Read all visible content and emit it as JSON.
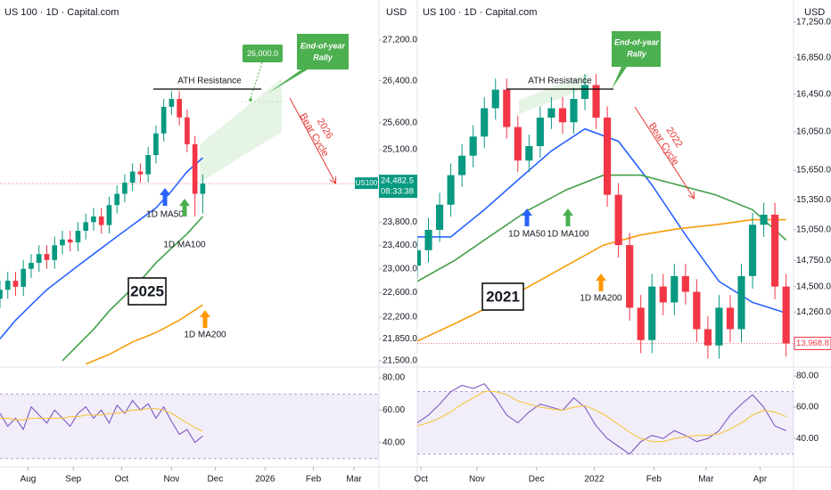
{
  "chart_data": [
    {
      "type": "candlestick",
      "source": "US 100 · 1D · Capital.com",
      "currency": "USD",
      "log": true,
      "up_color": "#089981",
      "down_color": "#f23645",
      "x": [
        0,
        5,
        10,
        15,
        20,
        25,
        30,
        35,
        40,
        45,
        50,
        55,
        60,
        65,
        70,
        75,
        80,
        85,
        90,
        95,
        100,
        105,
        110,
        115,
        120,
        125,
        130
      ],
      "open": [
        22500,
        22650,
        22800,
        22700,
        23000,
        23100,
        23250,
        23150,
        23400,
        23500,
        23450,
        23650,
        23800,
        23900,
        23750,
        24100,
        24300,
        24500,
        24700,
        24650,
        25000,
        25400,
        25900,
        26050,
        25700,
        25200,
        24300
      ],
      "high": [
        22800,
        22950,
        22950,
        23150,
        23250,
        23400,
        23400,
        23550,
        23650,
        23650,
        23800,
        23950,
        24050,
        24050,
        24250,
        24450,
        24650,
        24850,
        24850,
        25150,
        25550,
        26050,
        26200,
        26200,
        25850,
        25350,
        24650
      ],
      "low": [
        22350,
        22500,
        22550,
        22550,
        22850,
        22950,
        23000,
        23000,
        23250,
        23300,
        23300,
        23500,
        23650,
        23600,
        23600,
        23950,
        24150,
        24350,
        24500,
        24500,
        24850,
        25250,
        25750,
        25550,
        25050,
        23900,
        23950
      ],
      "close": [
        22650,
        22800,
        22700,
        23000,
        23100,
        23250,
        23150,
        23400,
        23500,
        23450,
        23650,
        23800,
        23900,
        23750,
        24100,
        24300,
        24500,
        24700,
        24650,
        25000,
        25400,
        25900,
        26050,
        25700,
        25200,
        24300,
        24482.5
      ],
      "xlim": [
        0,
        243
      ],
      "xticks": [
        {
          "value": 18,
          "label": "Aug"
        },
        {
          "value": 47,
          "label": "Sep"
        },
        {
          "value": 78,
          "label": "Oct"
        },
        {
          "value": 110,
          "label": "Nov"
        },
        {
          "value": 138,
          "label": "Dec"
        },
        {
          "value": 170,
          "label": "2026"
        },
        {
          "value": 201,
          "label": "Feb"
        },
        {
          "value": 227,
          "label": "Mar"
        }
      ],
      "ylim": [
        21430,
        28010
      ],
      "yticks": [
        {
          "value": 27200,
          "label": "27,200.0"
        },
        {
          "value": 26400,
          "label": "26,400.0"
        },
        {
          "value": 25600,
          "label": "25,600.0"
        },
        {
          "value": 25100,
          "label": "25,100.0"
        },
        {
          "value": 23800,
          "label": "23,800.0"
        },
        {
          "value": 23400,
          "label": "23,400.0"
        },
        {
          "value": 23000,
          "label": "23,000.0"
        },
        {
          "value": 22600,
          "label": "22,600.0"
        },
        {
          "value": 22200,
          "label": "22,200.0"
        },
        {
          "value": 21850,
          "label": "21,850.0"
        },
        {
          "value": 21500,
          "label": "21,500.0"
        }
      ],
      "series": [
        {
          "name": "1D MA50",
          "color": "#2962ff",
          "x": [
            0,
            10,
            20,
            30,
            40,
            50,
            60,
            70,
            80,
            90,
            100,
            110,
            120,
            130
          ],
          "values": [
            21850,
            22150,
            22400,
            22650,
            22850,
            23050,
            23250,
            23450,
            23650,
            23850,
            24050,
            24350,
            24700,
            24950
          ]
        },
        {
          "name": "1D MA100",
          "color": "#43a047",
          "x": [
            40,
            50,
            60,
            70,
            80,
            90,
            100,
            110,
            120,
            130
          ],
          "values": [
            21500,
            21750,
            22000,
            22300,
            22550,
            22800,
            23100,
            23350,
            23600,
            23900
          ]
        },
        {
          "name": "1D MA200",
          "color": "#f59d0b",
          "x": [
            55,
            70,
            85,
            100,
            115,
            130
          ],
          "values": [
            21450,
            21600,
            21800,
            21950,
            22150,
            22400
          ]
        }
      ],
      "last_price": {
        "value": 24482.5,
        "label": "24,482.5",
        "symbol": "US100",
        "countdown": "08:33:38"
      },
      "annotations": {
        "ath": "ATH Resistance",
        "target": {
          "value": 26000,
          "label": "26,000.0"
        },
        "rally": [
          "End-of-year",
          "Rally"
        ],
        "bear": [
          "2026",
          "Bear Cycle"
        ],
        "year": "2025"
      },
      "rsi": {
        "type": "line",
        "ylim": [
          26,
          85
        ],
        "band": [
          30,
          70
        ],
        "yticks": [
          {
            "value": 80,
            "label": "80.00"
          },
          {
            "value": 60,
            "label": "60.00"
          },
          {
            "value": 40,
            "label": "40.00"
          }
        ],
        "series": [
          {
            "color": "#7e57c2",
            "x": [
              0,
              5,
              10,
              15,
              20,
              25,
              30,
              35,
              40,
              45,
              50,
              55,
              60,
              65,
              70,
              75,
              80,
              85,
              90,
              95,
              100,
              105,
              110,
              115,
              120,
              125,
              130
            ],
            "values": [
              58,
              50,
              55,
              48,
              62,
              57,
              52,
              60,
              55,
              50,
              58,
              62,
              55,
              60,
              52,
              63,
              58,
              66,
              60,
              64,
              55,
              62,
              53,
              45,
              48,
              40,
              44
            ]
          },
          {
            "color": "#f5c542",
            "x": [
              0,
              5,
              10,
              15,
              20,
              25,
              30,
              35,
              40,
              45,
              50,
              55,
              60,
              65,
              70,
              75,
              80,
              85,
              90,
              95,
              100,
              105,
              110,
              115,
              120,
              125,
              130
            ],
            "values": [
              55,
              55,
              54,
              54,
              55,
              55,
              55,
              55,
              55,
              56,
              56,
              57,
              57,
              57,
              58,
              58,
              59,
              60,
              60,
              61,
              61,
              60,
              58,
              55,
              52,
              49,
              47
            ]
          }
        ]
      }
    },
    {
      "type": "candlestick",
      "source": "US 100 · 1D · Capital.com",
      "currency": "USD",
      "log": true,
      "up_color": "#089981",
      "down_color": "#f23645",
      "x": [
        0,
        6,
        12,
        18,
        24,
        30,
        36,
        42,
        48,
        54,
        60,
        66,
        72,
        78,
        84,
        90,
        96,
        102,
        108,
        114,
        120,
        126,
        132,
        138,
        144,
        150,
        156,
        162,
        168,
        174,
        180,
        186,
        192,
        198
      ],
      "open": [
        14700,
        14850,
        15050,
        15300,
        15600,
        15800,
        16000,
        16300,
        16500,
        16100,
        15750,
        15900,
        16200,
        16300,
        16150,
        16400,
        16550,
        16200,
        15400,
        14900,
        14300,
        14000,
        14500,
        14350,
        14600,
        14450,
        14100,
        13950,
        14300,
        14100,
        14600,
        15100,
        15200,
        14500
      ],
      "high": [
        14970,
        15170,
        15420,
        15720,
        15920,
        16120,
        16420,
        16620,
        16620,
        16220,
        16020,
        16320,
        16420,
        16420,
        16520,
        16670,
        16670,
        16320,
        15520,
        15020,
        14420,
        14620,
        14620,
        14720,
        14720,
        14570,
        14220,
        14420,
        14420,
        14720,
        15220,
        15320,
        15320,
        14620
      ],
      "low": [
        14580,
        14730,
        14930,
        15180,
        15480,
        15680,
        15880,
        16180,
        15980,
        15630,
        15630,
        15780,
        16080,
        16030,
        16030,
        16280,
        16080,
        15280,
        14780,
        14180,
        13880,
        13880,
        14230,
        14230,
        14330,
        13980,
        13830,
        13830,
        13980,
        13980,
        14480,
        14980,
        14380,
        13850
      ],
      "close": [
        14850,
        15050,
        15300,
        15600,
        15800,
        16000,
        16300,
        16500,
        16100,
        15750,
        15900,
        16200,
        16300,
        16150,
        16400,
        16550,
        16200,
        15400,
        14900,
        14300,
        14000,
        14500,
        14350,
        14600,
        14450,
        14100,
        13950,
        14300,
        14100,
        14600,
        15100,
        15200,
        14500,
        13968.8
      ],
      "xlim": [
        0,
        202
      ],
      "xticks": [
        {
          "value": 2,
          "label": "Oct"
        },
        {
          "value": 32,
          "label": "Nov"
        },
        {
          "value": 64,
          "label": "Dec"
        },
        {
          "value": 95,
          "label": "2022"
        },
        {
          "value": 127,
          "label": "Feb"
        },
        {
          "value": 155,
          "label": "Mar"
        },
        {
          "value": 184,
          "label": "Apr"
        }
      ],
      "ylim": [
        13770,
        17500
      ],
      "yticks": [
        {
          "value": 17250,
          "label": "17,250.0"
        },
        {
          "value": 16850,
          "label": "16,850.0"
        },
        {
          "value": 16450,
          "label": "16,450.0"
        },
        {
          "value": 16050,
          "label": "16,050.0"
        },
        {
          "value": 15650,
          "label": "15,650.0"
        },
        {
          "value": 15350,
          "label": "15,350.0"
        },
        {
          "value": 15050,
          "label": "15,050.0"
        },
        {
          "value": 14750,
          "label": "14,750.0"
        },
        {
          "value": 14500,
          "label": "14,500.0"
        },
        {
          "value": 14260,
          "label": "14,260.0"
        }
      ],
      "series": [
        {
          "name": "1D MA50",
          "color": "#2962ff",
          "x": [
            0,
            18,
            36,
            54,
            72,
            90,
            108,
            126,
            144,
            162,
            180,
            198
          ],
          "values": [
            14980,
            14980,
            15250,
            15550,
            15850,
            16080,
            15950,
            15500,
            15000,
            14550,
            14350,
            14250
          ]
        },
        {
          "name": "1D MA100",
          "color": "#43a047",
          "x": [
            0,
            20,
            40,
            60,
            80,
            100,
            120,
            140,
            160,
            180,
            198
          ],
          "values": [
            14550,
            14750,
            15000,
            15250,
            15450,
            15600,
            15600,
            15500,
            15400,
            15250,
            14950
          ]
        },
        {
          "name": "1D MA200",
          "color": "#f59d0b",
          "x": [
            0,
            20,
            40,
            60,
            80,
            100,
            120,
            140,
            160,
            180,
            198
          ],
          "values": [
            13990,
            14150,
            14320,
            14500,
            14700,
            14900,
            15000,
            15060,
            15100,
            15150,
            15150
          ]
        }
      ],
      "last_price": {
        "value": 13968.8,
        "label": "13,968.8"
      },
      "annotations": {
        "ath": "ATH Resistance",
        "rally": [
          "End-of-year",
          "Rally"
        ],
        "bear": [
          "2022",
          "Bear Cycle"
        ],
        "year": "2021"
      },
      "rsi": {
        "type": "line",
        "ylim": [
          23,
          84
        ],
        "band": [
          30,
          70
        ],
        "yticks": [
          {
            "value": 80,
            "label": "80.00"
          },
          {
            "value": 60,
            "label": "60.00"
          },
          {
            "value": 40,
            "label": "40.00"
          }
        ],
        "series": [
          {
            "color": "#7e57c2",
            "x": [
              0,
              6,
              12,
              18,
              24,
              30,
              36,
              42,
              48,
              54,
              60,
              66,
              72,
              78,
              84,
              90,
              96,
              102,
              108,
              114,
              120,
              126,
              132,
              138,
              144,
              150,
              156,
              162,
              168,
              174,
              180,
              186,
              192,
              198
            ],
            "values": [
              50,
              55,
              62,
              70,
              74,
              72,
              75,
              66,
              55,
              50,
              57,
              62,
              60,
              58,
              66,
              60,
              48,
              40,
              35,
              30,
              38,
              42,
              40,
              45,
              42,
              38,
              40,
              45,
              55,
              62,
              68,
              60,
              48,
              45
            ]
          },
          {
            "color": "#f5c542",
            "x": [
              0,
              6,
              12,
              18,
              24,
              30,
              36,
              42,
              48,
              54,
              60,
              66,
              72,
              78,
              84,
              90,
              96,
              102,
              108,
              114,
              120,
              126,
              132,
              138,
              144,
              150,
              156,
              162,
              168,
              174,
              180,
              186,
              192,
              198
            ],
            "values": [
              48,
              50,
              53,
              57,
              62,
              66,
              70,
              70,
              68,
              64,
              62,
              60,
              59,
              58,
              60,
              61,
              58,
              54,
              49,
              44,
              40,
              38,
              38,
              40,
              41,
              42,
              42,
              43,
              46,
              50,
              55,
              58,
              57,
              54
            ]
          }
        ]
      }
    }
  ]
}
